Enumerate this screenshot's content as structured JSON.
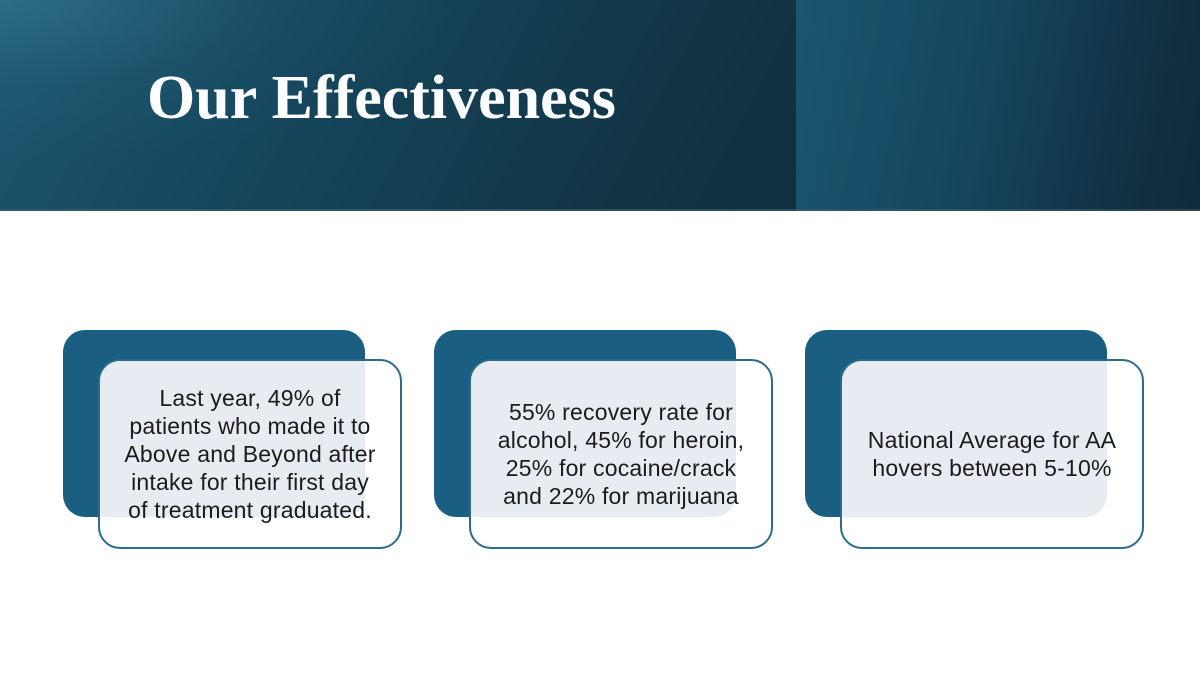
{
  "slide": {
    "title": "Our Effectiveness"
  },
  "cards": [
    {
      "text": "Last year, 49% of\npatients who made it to\nAbove and Beyond after\nintake for their first day\nof treatment graduated."
    },
    {
      "text": "55% recovery rate for\nalcohol, 45% for heroin,\n25% for cocaine/crack\nand 22% for marijuana"
    },
    {
      "text": "National Average for AA\nhovers between 5-10%"
    }
  ],
  "colors": {
    "accent_teal": "#1a5f81",
    "card_border": "#2e6b8a",
    "card_fill": "#e6ecf1",
    "header_dark": "#0e2a39",
    "header_light": "#1c5770",
    "title_text": "#fcfdfe",
    "body_text": "#1b1b1b"
  }
}
